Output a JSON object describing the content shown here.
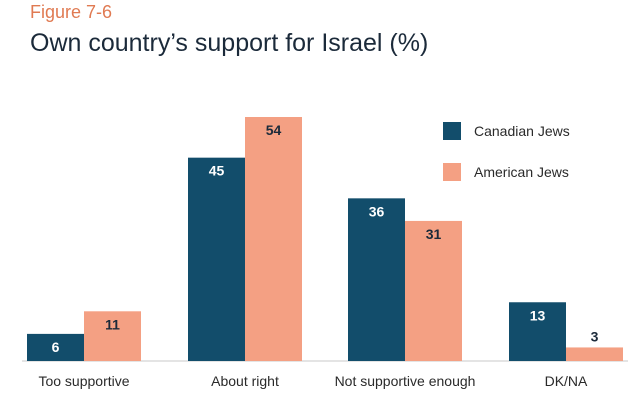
{
  "figure_label": "Figure 7-6",
  "chart_data": {
    "type": "bar",
    "title": "Own country’s support for Israel (%)",
    "categories": [
      "Too supportive",
      "About right",
      "Not supportive enough",
      "DK/NA"
    ],
    "series": [
      {
        "name": "Canadian Jews",
        "values": [
          6,
          45,
          36,
          13
        ],
        "color": "#124d6b",
        "label_color": "#ffffff"
      },
      {
        "name": "American Jews",
        "values": [
          11,
          54,
          31,
          3
        ],
        "color": "#f4a083",
        "label_color": "#1b2a3a"
      }
    ],
    "xlabel": "",
    "ylabel": "",
    "ylim": [
      0,
      54
    ],
    "grid": false,
    "legend": "top-right",
    "baseline_color": "#c9c9c9"
  }
}
